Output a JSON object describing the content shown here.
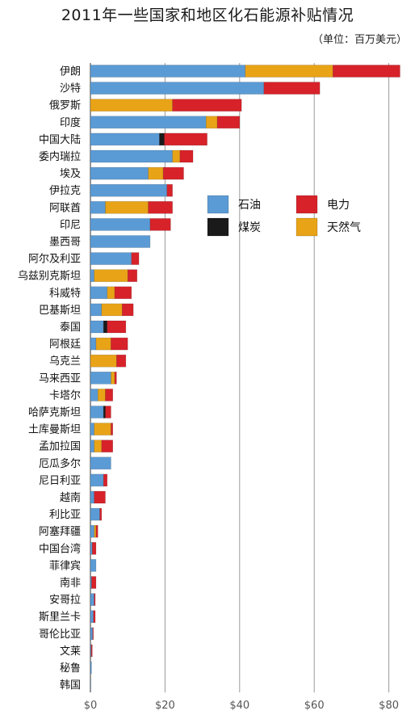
{
  "chart_data": {
    "type": "bar",
    "orientation": "horizontal",
    "stacked": true,
    "title": "2011年一些国家和地区化石能源补贴情况",
    "subtitle": "（单位：百万美元）",
    "xlim": [
      0,
      82
    ],
    "xticks": [
      0,
      20,
      40,
      60,
      80
    ],
    "xtick_labels": [
      "$0",
      "$20",
      "$40",
      "$60",
      "$80"
    ],
    "grid": true,
    "legend_position": "center-right",
    "categories": [
      "伊朗",
      "沙特",
      "俄罗斯",
      "印度",
      "中国大陆",
      "委内瑞拉",
      "埃及",
      "伊拉克",
      "阿联酋",
      "印尼",
      "墨西哥",
      "阿尔及利亚",
      "乌兹别克斯坦",
      "科威特",
      "巴基斯坦",
      "泰国",
      "阿根廷",
      "乌克兰",
      "马来西亚",
      "卡塔尔",
      "哈萨克斯坦",
      "土库曼斯坦",
      "孟加拉国",
      "厄瓜多尔",
      "尼日利亚",
      "越南",
      "利比亚",
      "阿塞拜疆",
      "中国台湾",
      "菲律宾",
      "南非",
      "安哥拉",
      "斯里兰卡",
      "哥伦比亚",
      "文莱",
      "秘鲁",
      "韩国"
    ],
    "series": [
      {
        "name": "石油",
        "color": "#5b9bd5",
        "values": [
          41.5,
          46.5,
          0,
          31.0,
          18.5,
          22.0,
          15.5,
          20.5,
          4.0,
          16.0,
          16.0,
          11.0,
          1.0,
          4.5,
          3.0,
          3.5,
          1.5,
          0,
          5.5,
          2.0,
          3.5,
          1.0,
          1.0,
          5.5,
          3.5,
          1.0,
          2.5,
          1.0,
          0.5,
          1.5,
          0.3,
          1.0,
          0.8,
          0.6,
          0.2,
          0.3,
          0.1
        ]
      },
      {
        "name": "煤炭",
        "color": "#1a1a1a",
        "values": [
          0,
          0,
          0,
          0,
          1.3,
          0,
          0,
          0,
          0,
          0,
          0,
          0,
          0,
          0,
          0,
          1.0,
          0,
          0,
          0,
          0,
          0.5,
          0,
          0,
          0,
          0,
          0,
          0,
          0,
          0,
          0,
          0,
          0,
          0,
          0,
          0,
          0,
          0
        ]
      },
      {
        "name": "天然气",
        "color": "#e8a317",
        "values": [
          23.5,
          0,
          22.0,
          3.0,
          0,
          2.0,
          4.0,
          0,
          11.5,
          0,
          0,
          0,
          9.0,
          2.0,
          5.5,
          0,
          4.0,
          7.0,
          1.0,
          2.0,
          0,
          4.5,
          2.0,
          0,
          0,
          0,
          0,
          0.5,
          0,
          0,
          0,
          0,
          0,
          0,
          0,
          0,
          0
        ]
      },
      {
        "name": "电力",
        "color": "#d7222a",
        "values": [
          18.0,
          15.0,
          18.5,
          6.0,
          11.5,
          3.5,
          5.5,
          1.5,
          6.5,
          5.5,
          0,
          2.0,
          2.5,
          4.5,
          3.0,
          5.0,
          4.5,
          2.5,
          0.5,
          2.0,
          1.5,
          0.5,
          3.0,
          0,
          1.0,
          3.0,
          0.5,
          0.5,
          1.0,
          0,
          1.2,
          0.3,
          0.5,
          0.2,
          0.3,
          0,
          0
        ]
      }
    ],
    "legend": [
      {
        "name": "石油",
        "color": "#5b9bd5"
      },
      {
        "name": "电力",
        "color": "#d7222a"
      },
      {
        "name": "煤炭",
        "color": "#1a1a1a"
      },
      {
        "name": "天然气",
        "color": "#e8a317"
      }
    ]
  }
}
